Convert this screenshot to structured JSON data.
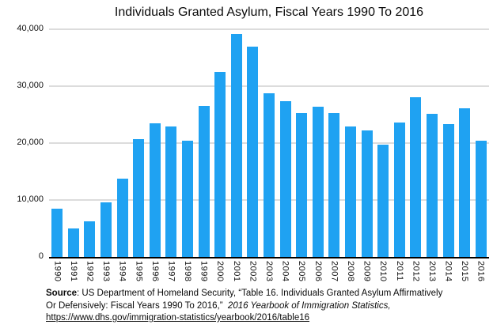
{
  "chart_data": {
    "type": "bar",
    "title": "Individuals Granted Asylum, Fiscal Years 1990 To 2016",
    "categories": [
      "1990",
      "1991",
      "1992",
      "1993",
      "1994",
      "1995",
      "1996",
      "1997",
      "1998",
      "1999",
      "2000",
      "2001",
      "2002",
      "2003",
      "2004",
      "2005",
      "2006",
      "2007",
      "2008",
      "2009",
      "2010",
      "2011",
      "2012",
      "2013",
      "2014",
      "2015",
      "2016"
    ],
    "values": [
      8472,
      5035,
      6307,
      9539,
      13817,
      20745,
      23542,
      22939,
      20455,
      26578,
      32476,
      39146,
      36940,
      28714,
      27321,
      25257,
      26389,
      25270,
      22930,
      22219,
      19770,
      23669,
      28026,
      25199,
      23374,
      26124,
      20455
    ],
    "xlabel": "",
    "ylabel": "",
    "ylim": [
      0,
      40000
    ],
    "yticks": [
      0,
      10000,
      20000,
      30000,
      40000
    ],
    "ytick_labels": [
      "0",
      "10,000",
      "20,000",
      "30,000",
      "40,000"
    ],
    "grid": true,
    "legend_position": "none",
    "colors": {
      "bar": "#1FA2F2",
      "gridline": "#DCDCDC",
      "axis": "#000000",
      "text": "#0B0B0B",
      "background": "#FFFFFF"
    }
  },
  "footer": {
    "source_label": "Source",
    "source_rest": ": US Department of Homeland Security, “Table 16. Individuals Granted Asylum Affirmatively",
    "line2_text": "Or Defensively: Fiscal Years 1990 To 2016,”  ",
    "line2_italic": "2016 Yearbook of Immigration Statistics,",
    "link": "https://www.dhs.gov/immigration-statistics/yearbook/2016/table16"
  }
}
